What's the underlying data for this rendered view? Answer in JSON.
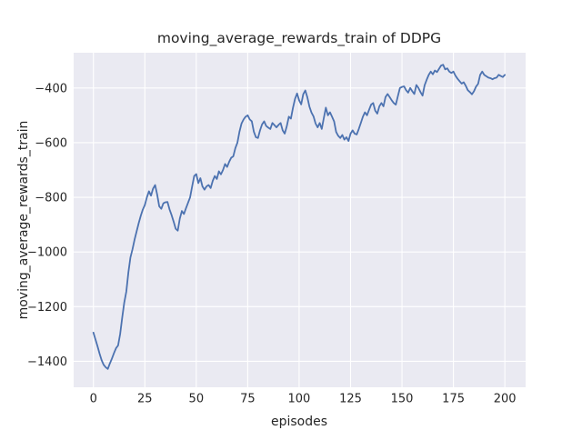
{
  "figure": {
    "title": "moving_average_rewards_train of DDPG",
    "xlabel": "episodes",
    "ylabel": "moving_average_rewards_train",
    "background_color": "#ffffff",
    "plot_background_color": "#eaeaf2",
    "grid_color": "#ffffff",
    "text_color": "#262626",
    "line_color": "#4c72b0"
  },
  "chart_data": {
    "type": "line",
    "title": "moving_average_rewards_train of DDPG",
    "xlabel": "episodes",
    "ylabel": "moving_average_rewards_train",
    "grid": true,
    "legend_position": "none",
    "x_ticks": [
      0,
      25,
      50,
      75,
      100,
      125,
      150,
      175,
      200
    ],
    "y_ticks": [
      -400,
      -600,
      -800,
      -1000,
      -1200,
      -1400
    ],
    "xlim": [
      -9.6,
      210.1
    ],
    "ylim": [
      -1495,
      -271
    ],
    "series": [
      {
        "name": "moving_average_rewards_train",
        "color": "#4c72b0",
        "x_start": 0,
        "x_step": 1,
        "values": [
          -1295,
          -1320,
          -1345,
          -1372,
          -1396,
          -1413,
          -1422,
          -1428,
          -1408,
          -1390,
          -1370,
          -1352,
          -1342,
          -1300,
          -1240,
          -1185,
          -1145,
          -1075,
          -1020,
          -990,
          -955,
          -925,
          -895,
          -868,
          -845,
          -828,
          -800,
          -778,
          -794,
          -768,
          -755,
          -790,
          -833,
          -842,
          -822,
          -818,
          -817,
          -844,
          -865,
          -889,
          -915,
          -922,
          -878,
          -850,
          -861,
          -840,
          -820,
          -800,
          -760,
          -722,
          -715,
          -748,
          -730,
          -760,
          -772,
          -760,
          -755,
          -766,
          -740,
          -722,
          -733,
          -705,
          -716,
          -700,
          -678,
          -689,
          -670,
          -655,
          -650,
          -620,
          -600,
          -560,
          -530,
          -515,
          -505,
          -500,
          -515,
          -522,
          -560,
          -580,
          -583,
          -555,
          -533,
          -522,
          -539,
          -545,
          -550,
          -528,
          -536,
          -544,
          -535,
          -528,
          -555,
          -567,
          -540,
          -505,
          -512,
          -473,
          -440,
          -420,
          -445,
          -460,
          -423,
          -409,
          -434,
          -468,
          -490,
          -504,
          -530,
          -544,
          -528,
          -550,
          -510,
          -472,
          -500,
          -489,
          -505,
          -522,
          -561,
          -575,
          -583,
          -572,
          -589,
          -580,
          -594,
          -567,
          -555,
          -567,
          -570,
          -550,
          -528,
          -505,
          -489,
          -500,
          -480,
          -461,
          -455,
          -483,
          -494,
          -467,
          -455,
          -467,
          -433,
          -422,
          -433,
          -445,
          -455,
          -461,
          -430,
          -400,
          -396,
          -394,
          -408,
          -417,
          -400,
          -412,
          -422,
          -389,
          -400,
          -415,
          -428,
          -390,
          -370,
          -352,
          -340,
          -350,
          -336,
          -342,
          -330,
          -318,
          -315,
          -332,
          -328,
          -340,
          -345,
          -340,
          -355,
          -366,
          -375,
          -384,
          -379,
          -392,
          -408,
          -415,
          -423,
          -412,
          -395,
          -385,
          -352,
          -340,
          -352,
          -357,
          -362,
          -364,
          -368,
          -364,
          -362,
          -352,
          -356,
          -360,
          -352
        ]
      }
    ]
  }
}
